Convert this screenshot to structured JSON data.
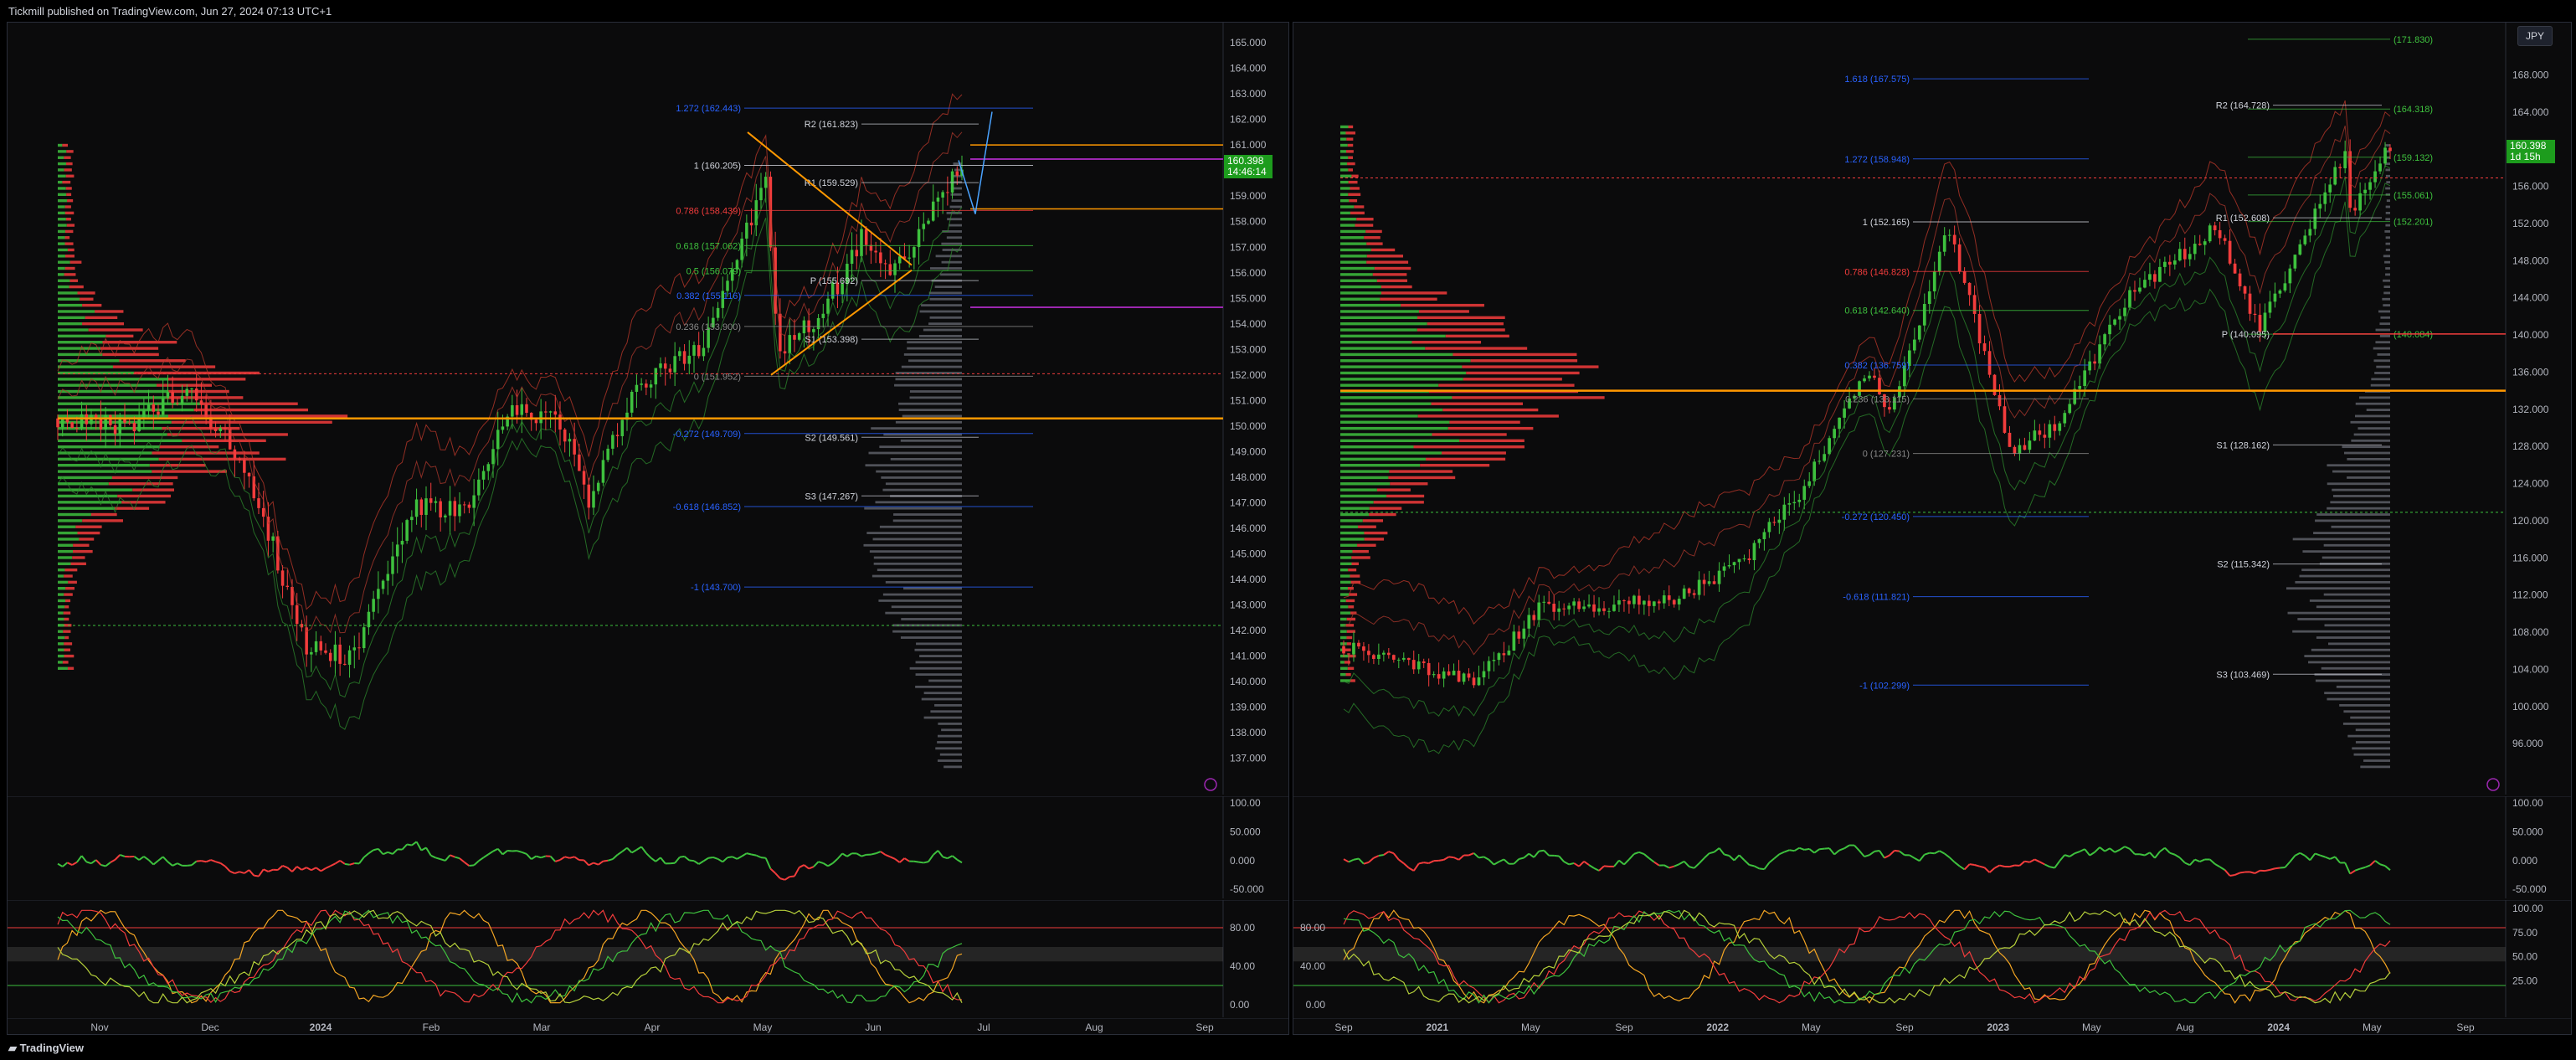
{
  "header": {
    "publish_text": "Tickmill published on TradingView.com, Jun 27, 2024 07:13 UTC+1"
  },
  "footer": {
    "brand": "TradingView"
  },
  "colors": {
    "up": "#3ec13e",
    "down": "#f23c3c",
    "fib": "#2962ff",
    "orange": "#ff9800",
    "pivot": "#d1d4dc",
    "purple": "#9c27b0"
  },
  "chart_data": [
    {
      "type": "candlestick",
      "title": "",
      "panel": "left",
      "currency_button": "",
      "price_tag": {
        "price": "160.398",
        "timer": "14:46:14"
      },
      "y_ticks": [
        "165.000",
        "164.000",
        "163.000",
        "162.000",
        "161.000",
        "160.000",
        "159.000",
        "158.000",
        "157.000",
        "156.000",
        "155.000",
        "154.000",
        "153.000",
        "152.000",
        "151.000",
        "150.000",
        "149.000",
        "148.000",
        "147.000",
        "146.000",
        "145.000",
        "144.000",
        "143.000",
        "142.000",
        "141.000",
        "140.000",
        "139.000",
        "138.000",
        "137.000"
      ],
      "ylim": [
        136.3,
        165.2
      ],
      "x_ticks": [
        "Nov",
        "Dec",
        "2024",
        "Feb",
        "Mar",
        "Apr",
        "May",
        "Jun",
        "Jul",
        "Aug",
        "Sep"
      ],
      "fib_levels": [
        {
          "label": "1.272 (162.443)",
          "price": 162.443,
          "color": "#2962ff"
        },
        {
          "label": "1 (160.205)",
          "price": 160.205,
          "color": "#d1d4dc"
        },
        {
          "label": "0.786 (158.439)",
          "price": 158.439,
          "color": "#f23c3c"
        },
        {
          "label": "0.618 (157.062)",
          "price": 157.062,
          "color": "#3ec13e"
        },
        {
          "label": "0.5 (156.079)",
          "price": 156.079,
          "color": "#3ec13e"
        },
        {
          "label": "0.382 (155.116)",
          "price": 155.116,
          "color": "#2962ff"
        },
        {
          "label": "0.236 (153.900)",
          "price": 153.9,
          "color": "#888888"
        },
        {
          "label": "0 (151.952)",
          "price": 151.952,
          "color": "#888888"
        },
        {
          "label": "-0.272 (149.709)",
          "price": 149.709,
          "color": "#2962ff"
        },
        {
          "label": "-0.618 (146.852)",
          "price": 146.852,
          "color": "#2962ff"
        },
        {
          "label": "-1 (143.700)",
          "price": 143.7,
          "color": "#2962ff"
        }
      ],
      "pivot_levels": [
        {
          "label": "R2 (161.823)",
          "price": 161.823
        },
        {
          "label": "R1 (159.529)",
          "price": 159.529
        },
        {
          "label": "P (155.692)",
          "price": 155.692
        },
        {
          "label": "S1 (153.398)",
          "price": 153.398
        },
        {
          "label": "S2 (149.561)",
          "price": 149.561
        },
        {
          "label": "S3 (147.267)",
          "price": 147.267
        }
      ],
      "close_points": [
        {
          "x": "2023-10-01",
          "y": 150.3
        },
        {
          "x": "2023-10-20",
          "y": 149.9
        },
        {
          "x": "2023-11-10",
          "y": 151.4
        },
        {
          "x": "2023-11-27",
          "y": 148.2
        },
        {
          "x": "2023-12-14",
          "y": 141.4
        },
        {
          "x": "2023-12-28",
          "y": 141.0
        },
        {
          "x": "2024-01-15",
          "y": 146.8
        },
        {
          "x": "2024-02-01",
          "y": 146.7
        },
        {
          "x": "2024-02-13",
          "y": 150.6
        },
        {
          "x": "2024-02-28",
          "y": 150.3
        },
        {
          "x": "2024-03-08",
          "y": 146.9
        },
        {
          "x": "2024-03-20",
          "y": 151.3
        },
        {
          "x": "2024-04-10",
          "y": 153.2
        },
        {
          "x": "2024-04-26",
          "y": 158.3
        },
        {
          "x": "2024-04-29",
          "y": 160.2
        },
        {
          "x": "2024-05-03",
          "y": 152.9
        },
        {
          "x": "2024-05-15",
          "y": 154.2
        },
        {
          "x": "2024-05-29",
          "y": 157.5
        },
        {
          "x": "2024-06-06",
          "y": 155.8
        },
        {
          "x": "2024-06-14",
          "y": 157.4
        },
        {
          "x": "2024-06-27",
          "y": 160.4
        }
      ],
      "oscillator_ticks": [
        "100.00",
        "50.000",
        "0.000",
        "-50.000"
      ],
      "stoch_ticks": [
        "80.00",
        "40.00",
        "0.00"
      ]
    },
    {
      "type": "candlestick",
      "title": "",
      "panel": "right",
      "currency_button": "JPY",
      "price_tag": {
        "price": "160.398",
        "timer": "1d 15h"
      },
      "y_ticks": [
        "168.000",
        "164.000",
        "160.000",
        "156.000",
        "152.000",
        "148.000",
        "144.000",
        "140.000",
        "136.000",
        "132.000",
        "128.000",
        "124.000",
        "120.000",
        "116.000",
        "112.000",
        "108.000",
        "104.000",
        "100.000",
        "96.000"
      ],
      "ylim": [
        92.5,
        172.0
      ],
      "x_ticks": [
        "Sep",
        "2021",
        "May",
        "Sep",
        "2022",
        "May",
        "Sep",
        "2023",
        "May",
        "Aug",
        "2024",
        "May",
        "Sep"
      ],
      "fib_levels": [
        {
          "label": "1.618 (167.575)",
          "price": 167.575,
          "color": "#2962ff"
        },
        {
          "label": "1.272 (158.948)",
          "price": 158.948,
          "color": "#2962ff"
        },
        {
          "label": "1 (152.165)",
          "price": 152.165,
          "color": "#d1d4dc"
        },
        {
          "label": "0.786 (146.828)",
          "price": 146.828,
          "color": "#f23c3c"
        },
        {
          "label": "0.618 (142.640)",
          "price": 142.64,
          "color": "#3ec13e"
        },
        {
          "label": "0.382 (136.759)",
          "price": 136.759,
          "color": "#2962ff"
        },
        {
          "label": "0.236 (133.115)",
          "price": 133.115,
          "color": "#888888"
        },
        {
          "label": "0 (127.231)",
          "price": 127.231,
          "color": "#888888"
        },
        {
          "label": "-0.272 (120.450)",
          "price": 120.45,
          "color": "#2962ff"
        },
        {
          "label": "-0.618 (111.821)",
          "price": 111.821,
          "color": "#2962ff"
        },
        {
          "label": "-1 (102.299)",
          "price": 102.299,
          "color": "#2962ff"
        }
      ],
      "pivot_levels": [
        {
          "label": "R2 (164.728)",
          "price": 164.728
        },
        {
          "label": "R1 (152.608)",
          "price": 152.608
        },
        {
          "label": "P (140.095)",
          "price": 140.095
        },
        {
          "label": "S1 (128.162)",
          "price": 128.162
        },
        {
          "label": "S2 (115.342)",
          "price": 115.342
        },
        {
          "label": "S3 (103.469)",
          "price": 103.469
        }
      ],
      "right_level_labels": [
        {
          "label": "(171.830)",
          "price": 171.83
        },
        {
          "label": "(164.318)",
          "price": 164.318
        },
        {
          "label": "(159.132)",
          "price": 159.132
        },
        {
          "label": "(155.061)",
          "price": 155.061
        },
        {
          "label": "(152.201)",
          "price": 152.201
        },
        {
          "label": "(140.084)",
          "price": 140.084
        }
      ],
      "close_points": [
        {
          "x": "2020-07-01",
          "y": 106.5
        },
        {
          "x": "2020-10-01",
          "y": 104.5
        },
        {
          "x": "2021-01-05",
          "y": 102.8
        },
        {
          "x": "2021-03-31",
          "y": 110.6
        },
        {
          "x": "2021-07-01",
          "y": 111.0
        },
        {
          "x": "2021-10-01",
          "y": 111.5
        },
        {
          "x": "2022-01-03",
          "y": 115.3
        },
        {
          "x": "2022-03-28",
          "y": 123.0
        },
        {
          "x": "2022-06-30",
          "y": 136.5
        },
        {
          "x": "2022-08-01",
          "y": 131.6
        },
        {
          "x": "2022-10-21",
          "y": 151.9
        },
        {
          "x": "2023-01-16",
          "y": 127.5
        },
        {
          "x": "2023-03-24",
          "y": 130.5
        },
        {
          "x": "2023-06-30",
          "y": 144.3
        },
        {
          "x": "2023-10-31",
          "y": 151.7
        },
        {
          "x": "2023-12-28",
          "y": 140.5
        },
        {
          "x": "2024-02-28",
          "y": 150.5
        },
        {
          "x": "2024-04-29",
          "y": 160.2
        },
        {
          "x": "2024-05-03",
          "y": 152.9
        },
        {
          "x": "2024-06-27",
          "y": 160.4
        }
      ],
      "oscillator_ticks": [
        "100.00",
        "50.000",
        "0.000",
        "-50.000"
      ],
      "stoch_ticks": [
        "100.00",
        "75.00",
        "50.00",
        "25.00"
      ],
      "stoch_left_ticks": [
        "80.00",
        "40.00",
        "0.00"
      ]
    }
  ]
}
